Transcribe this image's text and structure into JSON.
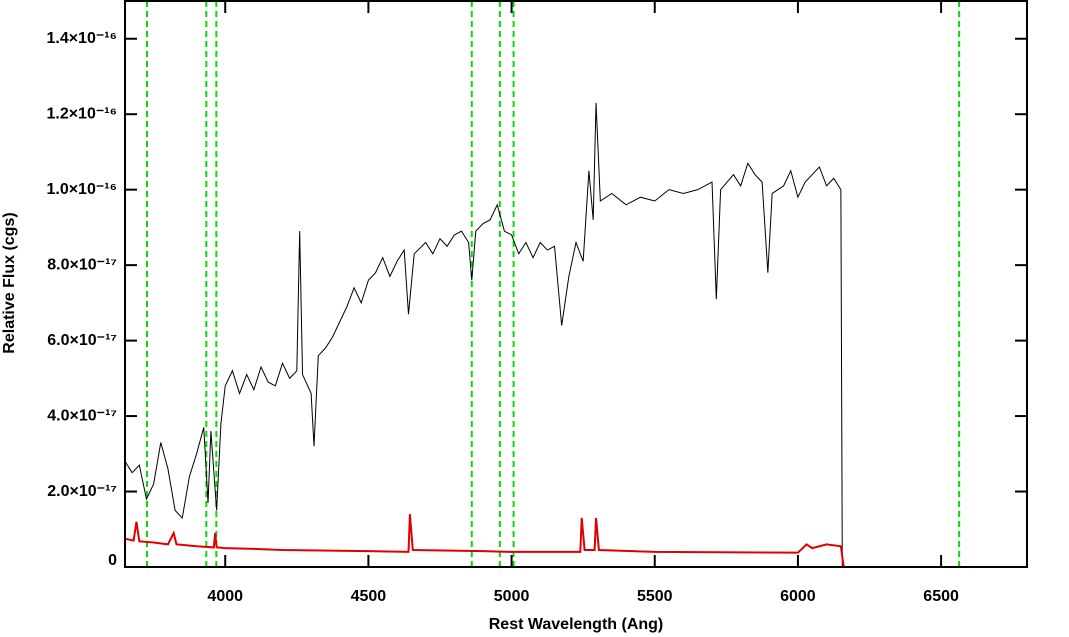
{
  "chart_data": {
    "type": "line",
    "x_label": "Rest Wavelength (Ang)",
    "y_label": "Relative Flux (cgs)",
    "xlim": [
      3650,
      6800
    ],
    "ylim": [
      0,
      1.5e-16
    ],
    "xticks": [
      4000,
      4500,
      5000,
      5500,
      6000,
      6500
    ],
    "yticks": [
      0,
      {
        "value": 2e-17,
        "label": "2.0×10⁻¹⁷"
      },
      {
        "value": 4e-17,
        "label": "4.0×10⁻¹⁷"
      },
      {
        "value": 6e-17,
        "label": "6.0×10⁻¹⁷"
      },
      {
        "value": 8e-17,
        "label": "8.0×10⁻¹⁷"
      },
      {
        "value": 1e-16,
        "label": "1.0×10⁻¹⁶"
      },
      {
        "value": 1.2e-16,
        "label": "1.2×10⁻¹⁶"
      },
      {
        "value": 1.4e-16,
        "label": "1.4×10⁻¹⁶"
      }
    ],
    "vlines": {
      "x": [
        3727,
        3934,
        3969,
        4861,
        4959,
        5007,
        6563
      ],
      "color": "#00dd00",
      "dashed": true
    },
    "series": [
      {
        "color": "#000000",
        "x": [
          3650,
          3675,
          3700,
          3725,
          3750,
          3775,
          3800,
          3825,
          3850,
          3875,
          3900,
          3925,
          3940,
          3950,
          3970,
          3985,
          4000,
          4025,
          4050,
          4075,
          4100,
          4125,
          4150,
          4175,
          4200,
          4225,
          4250,
          4260,
          4270,
          4300,
          4310,
          4325,
          4350,
          4375,
          4400,
          4425,
          4450,
          4475,
          4500,
          4525,
          4550,
          4575,
          4600,
          4625,
          4640,
          4660,
          4700,
          4725,
          4750,
          4775,
          4800,
          4825,
          4850,
          4861,
          4875,
          4900,
          4925,
          4950,
          4975,
          5000,
          5025,
          5050,
          5075,
          5100,
          5125,
          5150,
          5175,
          5200,
          5225,
          5250,
          5270,
          5285,
          5295,
          5310,
          5350,
          5400,
          5450,
          5500,
          5550,
          5600,
          5650,
          5700,
          5715,
          5730,
          5775,
          5800,
          5825,
          5850,
          5875,
          5895,
          5910,
          5950,
          5975,
          6000,
          6025,
          6050,
          6075,
          6100,
          6125,
          6150,
          6155
        ],
        "values": [
          2.8e-17,
          2.5e-17,
          2.7e-17,
          1.8e-17,
          2.2e-17,
          3.3e-17,
          2.6e-17,
          1.5e-17,
          1.3e-17,
          2.4e-17,
          3e-17,
          3.7e-17,
          1.7e-17,
          3.6e-17,
          1.5e-17,
          3.8e-17,
          4.8e-17,
          5.2e-17,
          4.6e-17,
          5.1e-17,
          4.7e-17,
          5.3e-17,
          4.9e-17,
          4.8e-17,
          5.4e-17,
          5e-17,
          5.2e-17,
          8.9e-17,
          5.1e-17,
          4.6e-17,
          3.2e-17,
          5.6e-17,
          5.8e-17,
          6.1e-17,
          6.5e-17,
          6.9e-17,
          7.4e-17,
          7e-17,
          7.6e-17,
          7.8e-17,
          8.2e-17,
          7.7e-17,
          8.1e-17,
          8.4e-17,
          6.7e-17,
          8.3e-17,
          8.6e-17,
          8.3e-17,
          8.7e-17,
          8.5e-17,
          8.8e-17,
          8.9e-17,
          8.6e-17,
          7.6e-17,
          8.9e-17,
          9.1e-17,
          9.2e-17,
          9.6e-17,
          8.9e-17,
          8.8e-17,
          8.3e-17,
          8.6e-17,
          8.2e-17,
          8.6e-17,
          8.4e-17,
          8.5e-17,
          6.4e-17,
          7.7e-17,
          8.6e-17,
          8.1e-17,
          1.05e-16,
          9.2e-17,
          1.23e-16,
          9.7e-17,
          9.9e-17,
          9.6e-17,
          9.8e-17,
          9.7e-17,
          1e-16,
          9.9e-17,
          1e-16,
          1.02e-16,
          7.1e-17,
          1e-16,
          1.04e-16,
          1.01e-16,
          1.07e-16,
          1.04e-16,
          1.02e-16,
          7.8e-17,
          9.9e-17,
          1.01e-16,
          1.05e-16,
          9.8e-17,
          1.02e-16,
          1.04e-16,
          1.06e-16,
          1.01e-16,
          1.03e-16,
          1e-16,
          0
        ]
      },
      {
        "color": "#e00000",
        "x": [
          3650,
          3680,
          3690,
          3700,
          3750,
          3800,
          3820,
          3830,
          3900,
          3960,
          3965,
          3970,
          4000,
          4100,
          4200,
          4500,
          4640,
          4645,
          4655,
          4900,
          5000,
          5240,
          5245,
          5255,
          5290,
          5295,
          5305,
          5500,
          6000,
          6030,
          6050,
          6100,
          6150,
          6160,
          6800
        ],
        "values": [
          7.5e-18,
          7e-18,
          1.2e-17,
          6.8e-18,
          6.5e-18,
          6e-18,
          9e-18,
          6e-18,
          5.5e-18,
          5.2e-18,
          9e-18,
          5.2e-18,
          5e-18,
          4.8e-18,
          4.5e-18,
          4.2e-18,
          4e-18,
          1.4e-17,
          4.5e-18,
          4.2e-18,
          4e-18,
          4e-18,
          1.3e-17,
          4.5e-18,
          4.5e-18,
          1.3e-17,
          4.5e-18,
          4e-18,
          3.8e-18,
          6e-18,
          5e-18,
          6e-18,
          5.5e-18,
          0,
          0
        ]
      }
    ]
  }
}
